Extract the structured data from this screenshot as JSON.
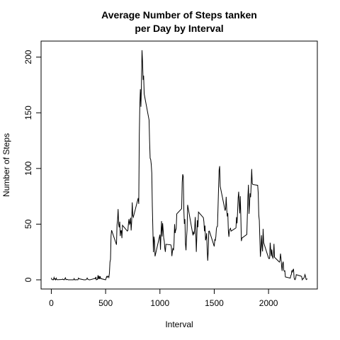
{
  "chart_data": {
    "type": "line",
    "title": [
      "Average Number of Steps tanken",
      "per Day by Interval"
    ],
    "x_label": "Interval",
    "y_label": "Number of Steps",
    "color": "#000000",
    "xlim": [
      -94.2,
      2449.2
    ],
    "xticks": [
      0,
      500,
      1000,
      1500,
      2000
    ],
    "ylim": [
      -8.25,
      214.4
    ],
    "yticks": [
      0,
      50,
      100,
      150,
      200
    ],
    "x": [
      0,
      5,
      10,
      15,
      20,
      25,
      30,
      35,
      40,
      45,
      50,
      55,
      100,
      105,
      110,
      115,
      120,
      125,
      130,
      135,
      140,
      145,
      150,
      155,
      200,
      205,
      210,
      215,
      220,
      225,
      230,
      235,
      240,
      245,
      250,
      255,
      300,
      305,
      310,
      315,
      320,
      325,
      330,
      335,
      340,
      345,
      350,
      355,
      400,
      405,
      410,
      415,
      420,
      425,
      430,
      435,
      440,
      445,
      450,
      455,
      500,
      505,
      510,
      515,
      520,
      525,
      530,
      535,
      540,
      545,
      550,
      555,
      600,
      605,
      610,
      615,
      620,
      625,
      630,
      635,
      640,
      645,
      650,
      655,
      700,
      705,
      710,
      715,
      720,
      725,
      730,
      735,
      740,
      745,
      750,
      755,
      800,
      805,
      810,
      815,
      820,
      825,
      830,
      835,
      840,
      845,
      850,
      855,
      900,
      905,
      910,
      915,
      920,
      925,
      930,
      935,
      940,
      945,
      950,
      955,
      1000,
      1005,
      1010,
      1015,
      1020,
      1025,
      1030,
      1035,
      1040,
      1045,
      1050,
      1055,
      1100,
      1105,
      1110,
      1115,
      1120,
      1125,
      1130,
      1135,
      1140,
      1145,
      1150,
      1155,
      1200,
      1205,
      1210,
      1215,
      1220,
      1225,
      1230,
      1235,
      1240,
      1245,
      1250,
      1255,
      1300,
      1305,
      1310,
      1315,
      1320,
      1325,
      1330,
      1335,
      1340,
      1345,
      1350,
      1355,
      1400,
      1405,
      1410,
      1415,
      1420,
      1425,
      1430,
      1435,
      1440,
      1445,
      1450,
      1455,
      1500,
      1505,
      1510,
      1515,
      1520,
      1525,
      1530,
      1535,
      1540,
      1545,
      1550,
      1555,
      1600,
      1605,
      1610,
      1615,
      1620,
      1625,
      1630,
      1635,
      1640,
      1645,
      1650,
      1655,
      1700,
      1705,
      1710,
      1715,
      1720,
      1725,
      1730,
      1735,
      1740,
      1745,
      1750,
      1755,
      1800,
      1805,
      1810,
      1815,
      1820,
      1825,
      1830,
      1835,
      1840,
      1845,
      1850,
      1855,
      1900,
      1905,
      1910,
      1915,
      1920,
      1925,
      1930,
      1935,
      1940,
      1945,
      1950,
      1955,
      2000,
      2005,
      2010,
      2015,
      2020,
      2025,
      2030,
      2035,
      2040,
      2045,
      2050,
      2055,
      2100,
      2105,
      2110,
      2115,
      2120,
      2125,
      2130,
      2135,
      2140,
      2145,
      2150,
      2155,
      2200,
      2205,
      2210,
      2215,
      2220,
      2225,
      2230,
      2235,
      2240,
      2245,
      2250,
      2255,
      2300,
      2305,
      2310,
      2315,
      2320,
      2325,
      2330,
      2335,
      2340,
      2345,
      2350,
      2355
    ],
    "values": [
      1.72,
      0.34,
      0.13,
      0.15,
      0.08,
      2.09,
      0.53,
      0.87,
      0,
      1.47,
      0.3,
      0.13,
      0.32,
      0.68,
      0.15,
      0.34,
      0,
      1.11,
      1.83,
      0.17,
      0.17,
      0.38,
      0.26,
      0,
      0,
      0,
      1.13,
      0,
      0,
      0.13,
      0,
      0.23,
      0,
      0,
      1.55,
      0.94,
      0,
      0,
      0,
      0,
      0.21,
      0.62,
      1.62,
      0.58,
      0.49,
      0.08,
      0,
      0,
      1.19,
      0.94,
      2.57,
      0,
      0.34,
      0.36,
      4.11,
      0.66,
      3.49,
      0.83,
      3.11,
      1.11,
      0,
      1.57,
      3,
      2.25,
      3.32,
      2.96,
      2.09,
      6.06,
      16,
      18.3,
      39.5,
      44.5,
      31.5,
      49.3,
      53.8,
      63.5,
      50,
      47.1,
      52.2,
      39.3,
      44,
      44.2,
      37.4,
      49,
      43.8,
      44.4,
      50.5,
      54.5,
      49.9,
      50.98,
      55.7,
      44.3,
      52.3,
      69.5,
      57.8,
      56.2,
      73.4,
      68.2,
      129.4,
      157.5,
      171.2,
      155.4,
      177.3,
      206.2,
      195.9,
      179.6,
      183.4,
      167,
      143.5,
      124,
      109.1,
      108.1,
      103.7,
      95.97,
      66.2,
      45.2,
      24.8,
      38.8,
      35,
      21.1,
      40.6,
      26.98,
      42.4,
      52.7,
      38.9,
      50.8,
      44.3,
      37.4,
      34.7,
      28.3,
      25.1,
      31.9,
      31.4,
      29.7,
      21.3,
      25.5,
      28.4,
      26.5,
      33.4,
      49.98,
      42,
      44.6,
      46,
      59.2,
      63.9,
      87.7,
      94.8,
      92.8,
      63.4,
      50.2,
      54.5,
      32.4,
      26.5,
      37.7,
      45.1,
      67.3,
      42.3,
      39.9,
      43.3,
      40.98,
      46.2,
      56.4,
      42.8,
      25.1,
      39.97,
      53.5,
      47.3,
      60.8,
      55.8,
      51.96,
      43.6,
      48.7,
      35.5,
      37.5,
      41.8,
      27.5,
      17.1,
      26.1,
      43.6,
      43.8,
      30,
      36.1,
      35.5,
      38.8,
      45.96,
      47.8,
      48.1,
      65.3,
      82.9,
      98.7,
      102.1,
      83.96,
      62.1,
      64.1,
      74.5,
      63.2,
      56.9,
      59.8,
      43.9,
      38.6,
      44.7,
      45.5,
      46.2,
      43.7,
      46.6,
      56.3,
      50.7,
      61.2,
      73.4,
      79.1,
      68.9,
      59.7,
      75.1,
      56.5,
      34.8,
      37.5,
      40.7,
      58,
      74.7,
      85.3,
      59.3,
      67.8,
      77.7,
      74.2,
      85.3,
      99.5,
      86.6,
      85.6,
      84.9,
      77.8,
      58,
      53.4,
      36.3,
      20.7,
      27.4,
      40,
      30.2,
      25.5,
      45.7,
      33.5,
      19.6,
      19,
      19.3,
      33.3,
      26.8,
      21.2,
      27.3,
      21.3,
      19.5,
      21.3,
      32.3,
      20.2,
      15.9,
      17.2,
      23.5,
      19.2,
      12.5,
      8,
      14.7,
      16.3,
      8.7,
      7.8,
      8.1,
      2.6,
      1.5,
      3.7,
      4.8,
      8.5,
      7.1,
      8.7,
      9.8,
      2.2,
      0.3,
      0.1,
      1.6,
      4.6,
      3.3,
      2.8,
      0,
      0.8,
      0.96,
      1.6,
      2.6,
      4.7,
      3.3,
      0.6,
      0.2,
      1.1
    ]
  }
}
